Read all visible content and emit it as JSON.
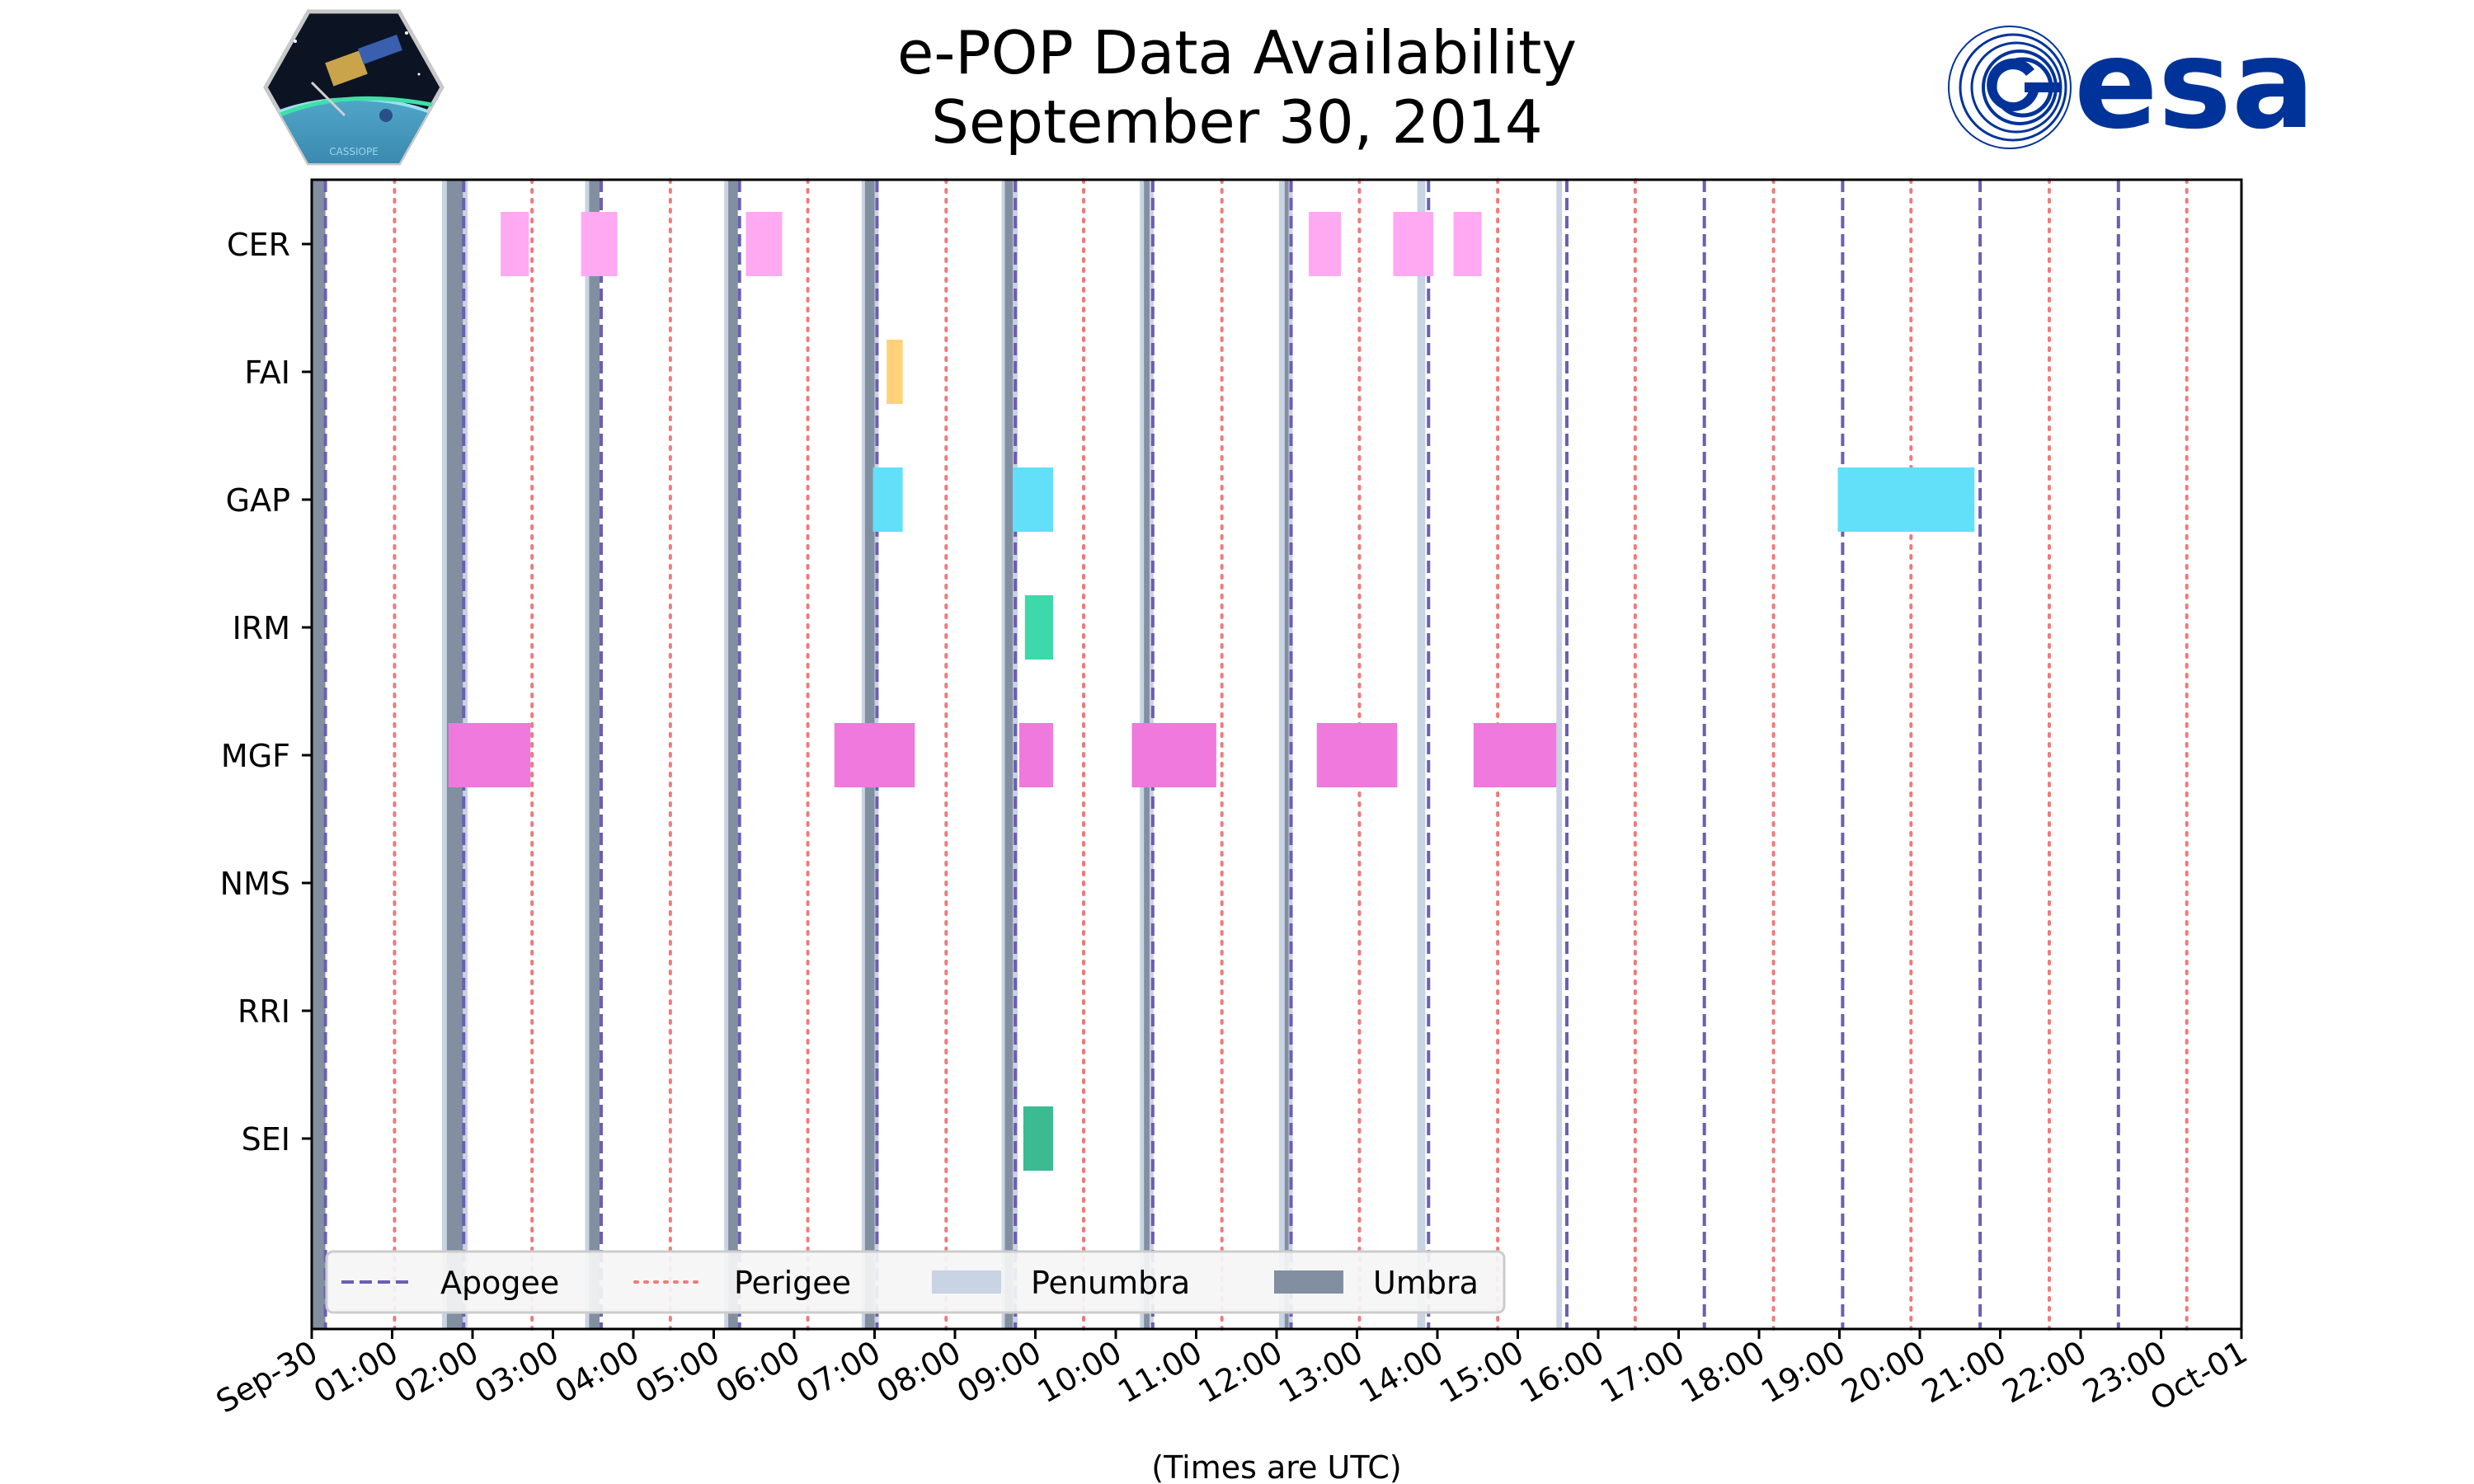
{
  "chart_data": {
    "type": "timeline",
    "title_line1": "e-POP Data Availability",
    "title_line2": "September 30, 2014",
    "xlabel": "(Times are UTC)",
    "xlim_hours": [
      0,
      24
    ],
    "x_tick_hours": [
      0,
      1,
      2,
      3,
      4,
      5,
      6,
      7,
      8,
      9,
      10,
      11,
      12,
      13,
      14,
      15,
      16,
      17,
      18,
      19,
      20,
      21,
      22,
      23,
      24
    ],
    "x_tick_labels": [
      "Sep-30",
      "01:00",
      "02:00",
      "03:00",
      "04:00",
      "05:00",
      "06:00",
      "07:00",
      "08:00",
      "09:00",
      "10:00",
      "11:00",
      "12:00",
      "13:00",
      "14:00",
      "15:00",
      "16:00",
      "17:00",
      "18:00",
      "19:00",
      "20:00",
      "21:00",
      "22:00",
      "23:00",
      "Oct-01"
    ],
    "instruments": [
      "CER",
      "FAI",
      "GAP",
      "IRM",
      "MGF",
      "NMS",
      "RRI",
      "SEI"
    ],
    "intervals": [
      {
        "instrument": "CER",
        "start": 2.35,
        "end": 2.7,
        "color": "#FFA9F2"
      },
      {
        "instrument": "CER",
        "start": 3.35,
        "end": 3.8,
        "color": "#FFA9F2"
      },
      {
        "instrument": "CER",
        "start": 5.4,
        "end": 5.85,
        "color": "#FFA9F2"
      },
      {
        "instrument": "CER",
        "start": 12.4,
        "end": 12.8,
        "color": "#FFA9F2"
      },
      {
        "instrument": "CER",
        "start": 13.45,
        "end": 13.95,
        "color": "#FFA9F2"
      },
      {
        "instrument": "CER",
        "start": 14.2,
        "end": 14.55,
        "color": "#FFA9F2"
      },
      {
        "instrument": "FAI",
        "start": 7.15,
        "end": 7.35,
        "color": "#FFD27A"
      },
      {
        "instrument": "GAP",
        "start": 6.98,
        "end": 7.35,
        "color": "#62DFF9"
      },
      {
        "instrument": "GAP",
        "start": 8.72,
        "end": 9.22,
        "color": "#62DFF9"
      },
      {
        "instrument": "GAP",
        "start": 18.98,
        "end": 20.68,
        "color": "#62DFF9"
      },
      {
        "instrument": "IRM",
        "start": 8.87,
        "end": 9.22,
        "color": "#3DD9AA"
      },
      {
        "instrument": "MGF",
        "start": 1.7,
        "end": 2.72,
        "color": "#EF79DD"
      },
      {
        "instrument": "MGF",
        "start": 6.5,
        "end": 7.5,
        "color": "#EF79DD"
      },
      {
        "instrument": "MGF",
        "start": 8.8,
        "end": 9.22,
        "color": "#EF79DD"
      },
      {
        "instrument": "MGF",
        "start": 10.2,
        "end": 11.25,
        "color": "#EF79DD"
      },
      {
        "instrument": "MGF",
        "start": 12.5,
        "end": 13.5,
        "color": "#EF79DD"
      },
      {
        "instrument": "MGF",
        "start": 14.45,
        "end": 15.48,
        "color": "#EF79DD"
      },
      {
        "instrument": "SEI",
        "start": 8.85,
        "end": 9.22,
        "color": "#3CBB93"
      }
    ],
    "apogee_hours": [
      0.17,
      1.89,
      3.6,
      5.32,
      7.03,
      8.75,
      10.46,
      12.18,
      13.89,
      15.61,
      17.32,
      19.04,
      20.75,
      22.47
    ],
    "perigee_hours": [
      1.03,
      2.74,
      4.46,
      6.17,
      7.89,
      9.6,
      11.32,
      13.03,
      14.75,
      16.46,
      18.18,
      19.89,
      21.61,
      23.32
    ],
    "umbra_intervals": [
      [
        0.0,
        0.17
      ],
      [
        1.68,
        1.88
      ],
      [
        3.45,
        3.58
      ],
      [
        5.18,
        5.3
      ],
      [
        6.88,
        7.0
      ],
      [
        8.62,
        8.72
      ],
      [
        10.35,
        10.42
      ],
      [
        12.1,
        12.15
      ]
    ],
    "penumbra_intervals": [
      [
        1.62,
        1.68
      ],
      [
        1.88,
        1.94
      ],
      [
        3.4,
        3.45
      ],
      [
        5.13,
        5.18
      ],
      [
        6.84,
        6.88
      ],
      [
        6.98,
        7.05
      ],
      [
        8.58,
        8.62
      ],
      [
        8.72,
        8.78
      ],
      [
        10.3,
        10.35
      ],
      [
        10.42,
        10.47
      ],
      [
        12.03,
        12.1
      ],
      [
        12.15,
        12.2
      ],
      [
        13.75,
        13.85
      ],
      [
        15.48,
        15.55
      ]
    ],
    "legend": [
      {
        "label": "Apogee",
        "style": "dashed",
        "color": "#6A5FB3"
      },
      {
        "label": "Perigee",
        "style": "dotted",
        "color": "#F07A7A"
      },
      {
        "label": "Penumbra",
        "style": "patch",
        "color": "#C8D3E3"
      },
      {
        "label": "Umbra",
        "style": "patch",
        "color": "#818FA1"
      }
    ],
    "legend_position": "lower-left"
  },
  "logos": {
    "left_caption": "CASSIOPE",
    "right_text": "esa",
    "right_color": "#003399"
  }
}
